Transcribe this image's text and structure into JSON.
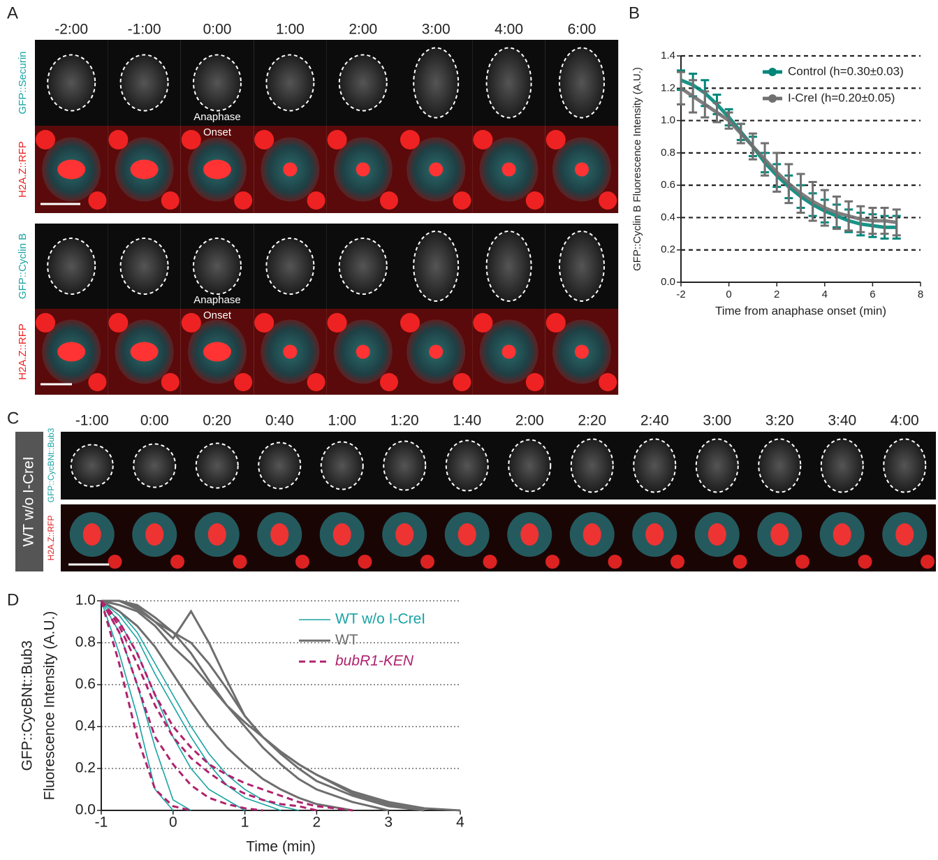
{
  "panel_a": {
    "label": "A",
    "times": [
      "-2:00",
      "-1:00",
      "0:00",
      "1:00",
      "2:00",
      "3:00",
      "4:00",
      "6:00"
    ],
    "rows": [
      "GFP::Securin",
      "H2A.Z::RFP",
      "GFP::Cyclin B",
      "H2A.Z::RFP"
    ],
    "annotation": [
      "Anaphase",
      "Onset"
    ]
  },
  "panel_c": {
    "label": "C",
    "condition": "WT w/o I-CreI",
    "times": [
      "-1:00",
      "0:00",
      "0:20",
      "0:40",
      "1:00",
      "1:20",
      "1:40",
      "2:00",
      "2:20",
      "2:40",
      "3:00",
      "3:20",
      "3:40",
      "4:00"
    ],
    "rows": [
      "GFP::CycBNt::Bub3",
      "H2A.Z::RFP"
    ]
  },
  "chart_data": [
    {
      "type": "errorline",
      "label": "B",
      "xlabel": "Time from anaphase onset (min)",
      "ylabel": "GFP::Cyclin B Fluorescence Intensity (A.U.)",
      "x": [
        -2,
        -1.5,
        -1,
        -0.5,
        0,
        0.5,
        1,
        1.5,
        2,
        2.5,
        3,
        3.5,
        4,
        4.5,
        5,
        5.5,
        6,
        6.5,
        7
      ],
      "series": [
        {
          "name": "Control (h=0.30±0.03)",
          "color": "#00877a",
          "values": [
            1.25,
            1.22,
            1.17,
            1.1,
            1.02,
            0.93,
            0.84,
            0.74,
            0.66,
            0.59,
            0.53,
            0.48,
            0.44,
            0.41,
            0.38,
            0.36,
            0.35,
            0.34,
            0.34
          ],
          "errors": [
            0.06,
            0.07,
            0.08,
            0.06,
            0.05,
            0.05,
            0.06,
            0.06,
            0.07,
            0.07,
            0.07,
            0.07,
            0.07,
            0.07,
            0.07,
            0.07,
            0.07,
            0.07,
            0.07
          ]
        },
        {
          "name": "I-CreI (h=0.20±0.05)",
          "color": "#707070",
          "values": [
            1.2,
            1.15,
            1.1,
            1.05,
            1.0,
            0.92,
            0.84,
            0.76,
            0.68,
            0.61,
            0.55,
            0.5,
            0.46,
            0.43,
            0.41,
            0.39,
            0.38,
            0.38,
            0.37
          ],
          "errors": [
            0.1,
            0.1,
            0.08,
            0.06,
            0.05,
            0.06,
            0.08,
            0.1,
            0.12,
            0.12,
            0.12,
            0.12,
            0.11,
            0.1,
            0.09,
            0.08,
            0.08,
            0.08,
            0.08
          ]
        }
      ],
      "xlim": [
        -2,
        8
      ],
      "xticks": [
        -2,
        0,
        2,
        4,
        6,
        8
      ],
      "ylim": [
        0,
        1.4
      ],
      "yticks": [
        {
          "value": 0,
          "label": "0.0"
        },
        0.2,
        0.4,
        0.6,
        0.8,
        {
          "value": 1,
          "label": "1.0"
        },
        1.2,
        1.4
      ],
      "grid": true,
      "legend": "top-right"
    },
    {
      "type": "multiline",
      "label": "D",
      "xlabel": "Time (min)",
      "ylabel": [
        "GFP::CycBNt::Bub3",
        "Fluorescence Intensity (A.U.)"
      ],
      "x": [
        -1,
        -0.75,
        -0.5,
        -0.25,
        0,
        0.25,
        0.5,
        0.75,
        1,
        1.25,
        1.5,
        1.75,
        2,
        2.5,
        3,
        3.5,
        4
      ],
      "series": [
        {
          "name": "WT w/o I-CreI",
          "color": "#1aa3a3",
          "width": 1.6,
          "dashed": false,
          "traces": [
            [
              1,
              0.75,
              0.45,
              0.1,
              0,
              null,
              null,
              null,
              null,
              null,
              null,
              null,
              null,
              null,
              null,
              null,
              null
            ],
            [
              1,
              0.85,
              0.6,
              0.3,
              0.05,
              0,
              null,
              null,
              null,
              null,
              null,
              null,
              null,
              null,
              null,
              null,
              null
            ],
            [
              1,
              0.9,
              0.75,
              0.55,
              0.35,
              0.2,
              0.1,
              0.05,
              0,
              null,
              null,
              null,
              null,
              null,
              null,
              null,
              null
            ],
            [
              1,
              0.95,
              0.85,
              0.7,
              0.55,
              0.4,
              0.27,
              0.17,
              0.1,
              0.05,
              0.02,
              0,
              null,
              null,
              null,
              null,
              null
            ],
            [
              1,
              0.93,
              0.82,
              0.65,
              0.5,
              0.35,
              0.22,
              0.12,
              0.06,
              0.03,
              0,
              null,
              null,
              null,
              null,
              null,
              null
            ]
          ]
        },
        {
          "name": "WT",
          "color": "#6e6e6e",
          "width": 3,
          "dashed": false,
          "traces": [
            [
              1,
              1,
              0.98,
              0.92,
              0.85,
              0.75,
              0.62,
              0.5,
              0.4,
              0.3,
              0.22,
              0.15,
              0.1,
              0.04,
              0,
              null,
              null
            ],
            [
              1,
              1,
              0.97,
              0.9,
              0.82,
              0.95,
              0.8,
              0.62,
              0.45,
              0.35,
              0.28,
              0.22,
              0.17,
              0.08,
              0.03,
              0,
              null
            ],
            [
              1,
              0.98,
              0.95,
              0.88,
              0.78,
              0.7,
              0.6,
              0.5,
              0.42,
              0.35,
              0.28,
              0.22,
              0.17,
              0.09,
              0.04,
              0.01,
              0
            ],
            [
              1,
              1,
              0.96,
              0.9,
              0.85,
              0.8,
              0.7,
              0.58,
              0.45,
              0.35,
              0.27,
              0.2,
              0.14,
              0.07,
              0.02,
              0,
              null
            ],
            [
              1,
              0.95,
              0.88,
              0.78,
              0.65,
              0.52,
              0.4,
              0.3,
              0.22,
              0.15,
              0.1,
              0.06,
              0.03,
              0,
              null,
              null,
              null
            ]
          ]
        },
        {
          "name": "bubR1-KEN",
          "color": "#b0226e",
          "width": 3,
          "dashed": true,
          "traces": [
            [
              1,
              0.7,
              0.35,
              0.1,
              0.02,
              0,
              null,
              null,
              null,
              null,
              null,
              null,
              null,
              null,
              null,
              null,
              null
            ],
            [
              1,
              0.85,
              0.6,
              0.35,
              0.22,
              0.12,
              0.06,
              0.03,
              0.01,
              0,
              null,
              null,
              null,
              null,
              null,
              null,
              null
            ],
            [
              1,
              0.88,
              0.7,
              0.5,
              0.35,
              0.25,
              0.18,
              0.12,
              0.08,
              0.05,
              0.03,
              0.02,
              0,
              null,
              null,
              null,
              null
            ],
            [
              1,
              0.9,
              0.75,
              0.55,
              0.4,
              0.3,
              0.22,
              0.17,
              0.13,
              0.1,
              0.07,
              0.04,
              0.02,
              0,
              null,
              null,
              null
            ]
          ]
        }
      ],
      "xlim": [
        -1,
        4
      ],
      "xticks": [
        -1,
        0,
        1,
        2,
        3,
        4
      ],
      "ylim": [
        0,
        1
      ],
      "yticks": [
        {
          "value": 0,
          "label": "0.0"
        },
        0.2,
        0.4,
        0.6,
        0.8,
        {
          "value": 1,
          "label": "1.0"
        }
      ],
      "grid": true,
      "legend": "top-right"
    }
  ]
}
